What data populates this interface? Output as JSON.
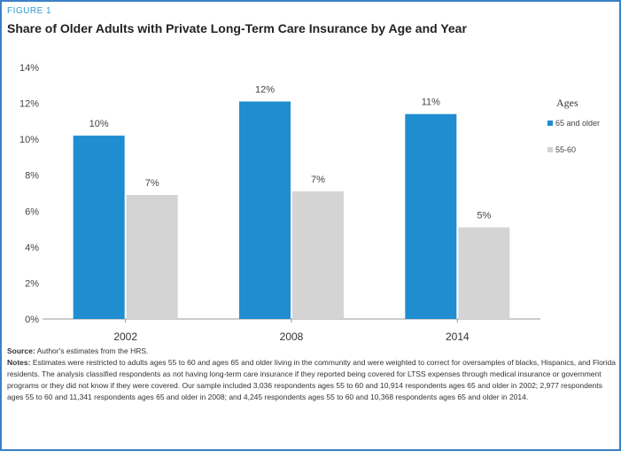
{
  "figure": {
    "label": "FIGURE 1",
    "title": "Share of Older Adults with Private Long-Term Care Insurance by Age and Year"
  },
  "chart_data": {
    "type": "bar",
    "categories": [
      "2002",
      "2008",
      "2014"
    ],
    "series": [
      {
        "name": "65 and older",
        "values": [
          10.2,
          12.1,
          11.4
        ],
        "labels": [
          "10%",
          "12%",
          "11%"
        ],
        "color": "#1f8dd0"
      },
      {
        "name": "55-60",
        "values": [
          6.9,
          7.1,
          5.1
        ],
        "labels": [
          "7%",
          "7%",
          "5%"
        ],
        "color": "#d4d4d4"
      }
    ],
    "ylim": [
      0,
      14
    ],
    "yticks": [
      "0%",
      "2%",
      "4%",
      "6%",
      "8%",
      "10%",
      "12%",
      "14%"
    ],
    "legend_title": "Ages",
    "legend_position": "right",
    "grid": false
  },
  "source": {
    "label": "Source:",
    "text": "Author's estimates from the HRS."
  },
  "notes": {
    "label": "Notes:",
    "text": "Estimates were restricted to adults ages 55 to 60 and ages 65 and older living in the community and were weighted to correct for oversamples of blacks, Hispanics, and Florida residents. The analysis classified respondents as not having long-term care insurance if they reported being covered for LTSS expenses through medical insurance or government programs or they did not know if they were covered. Our sample included 3,036 respondents ages 55 to 60 and 10,914 respondents ages 65 and older in 2002; 2,977 respondents ages 55 to 60 and 11,341 respondents ages 65 and older in 2008; and 4,245 respondents ages 55 to 60 and 10,368 respondents ages 65 and older in 2014."
  }
}
